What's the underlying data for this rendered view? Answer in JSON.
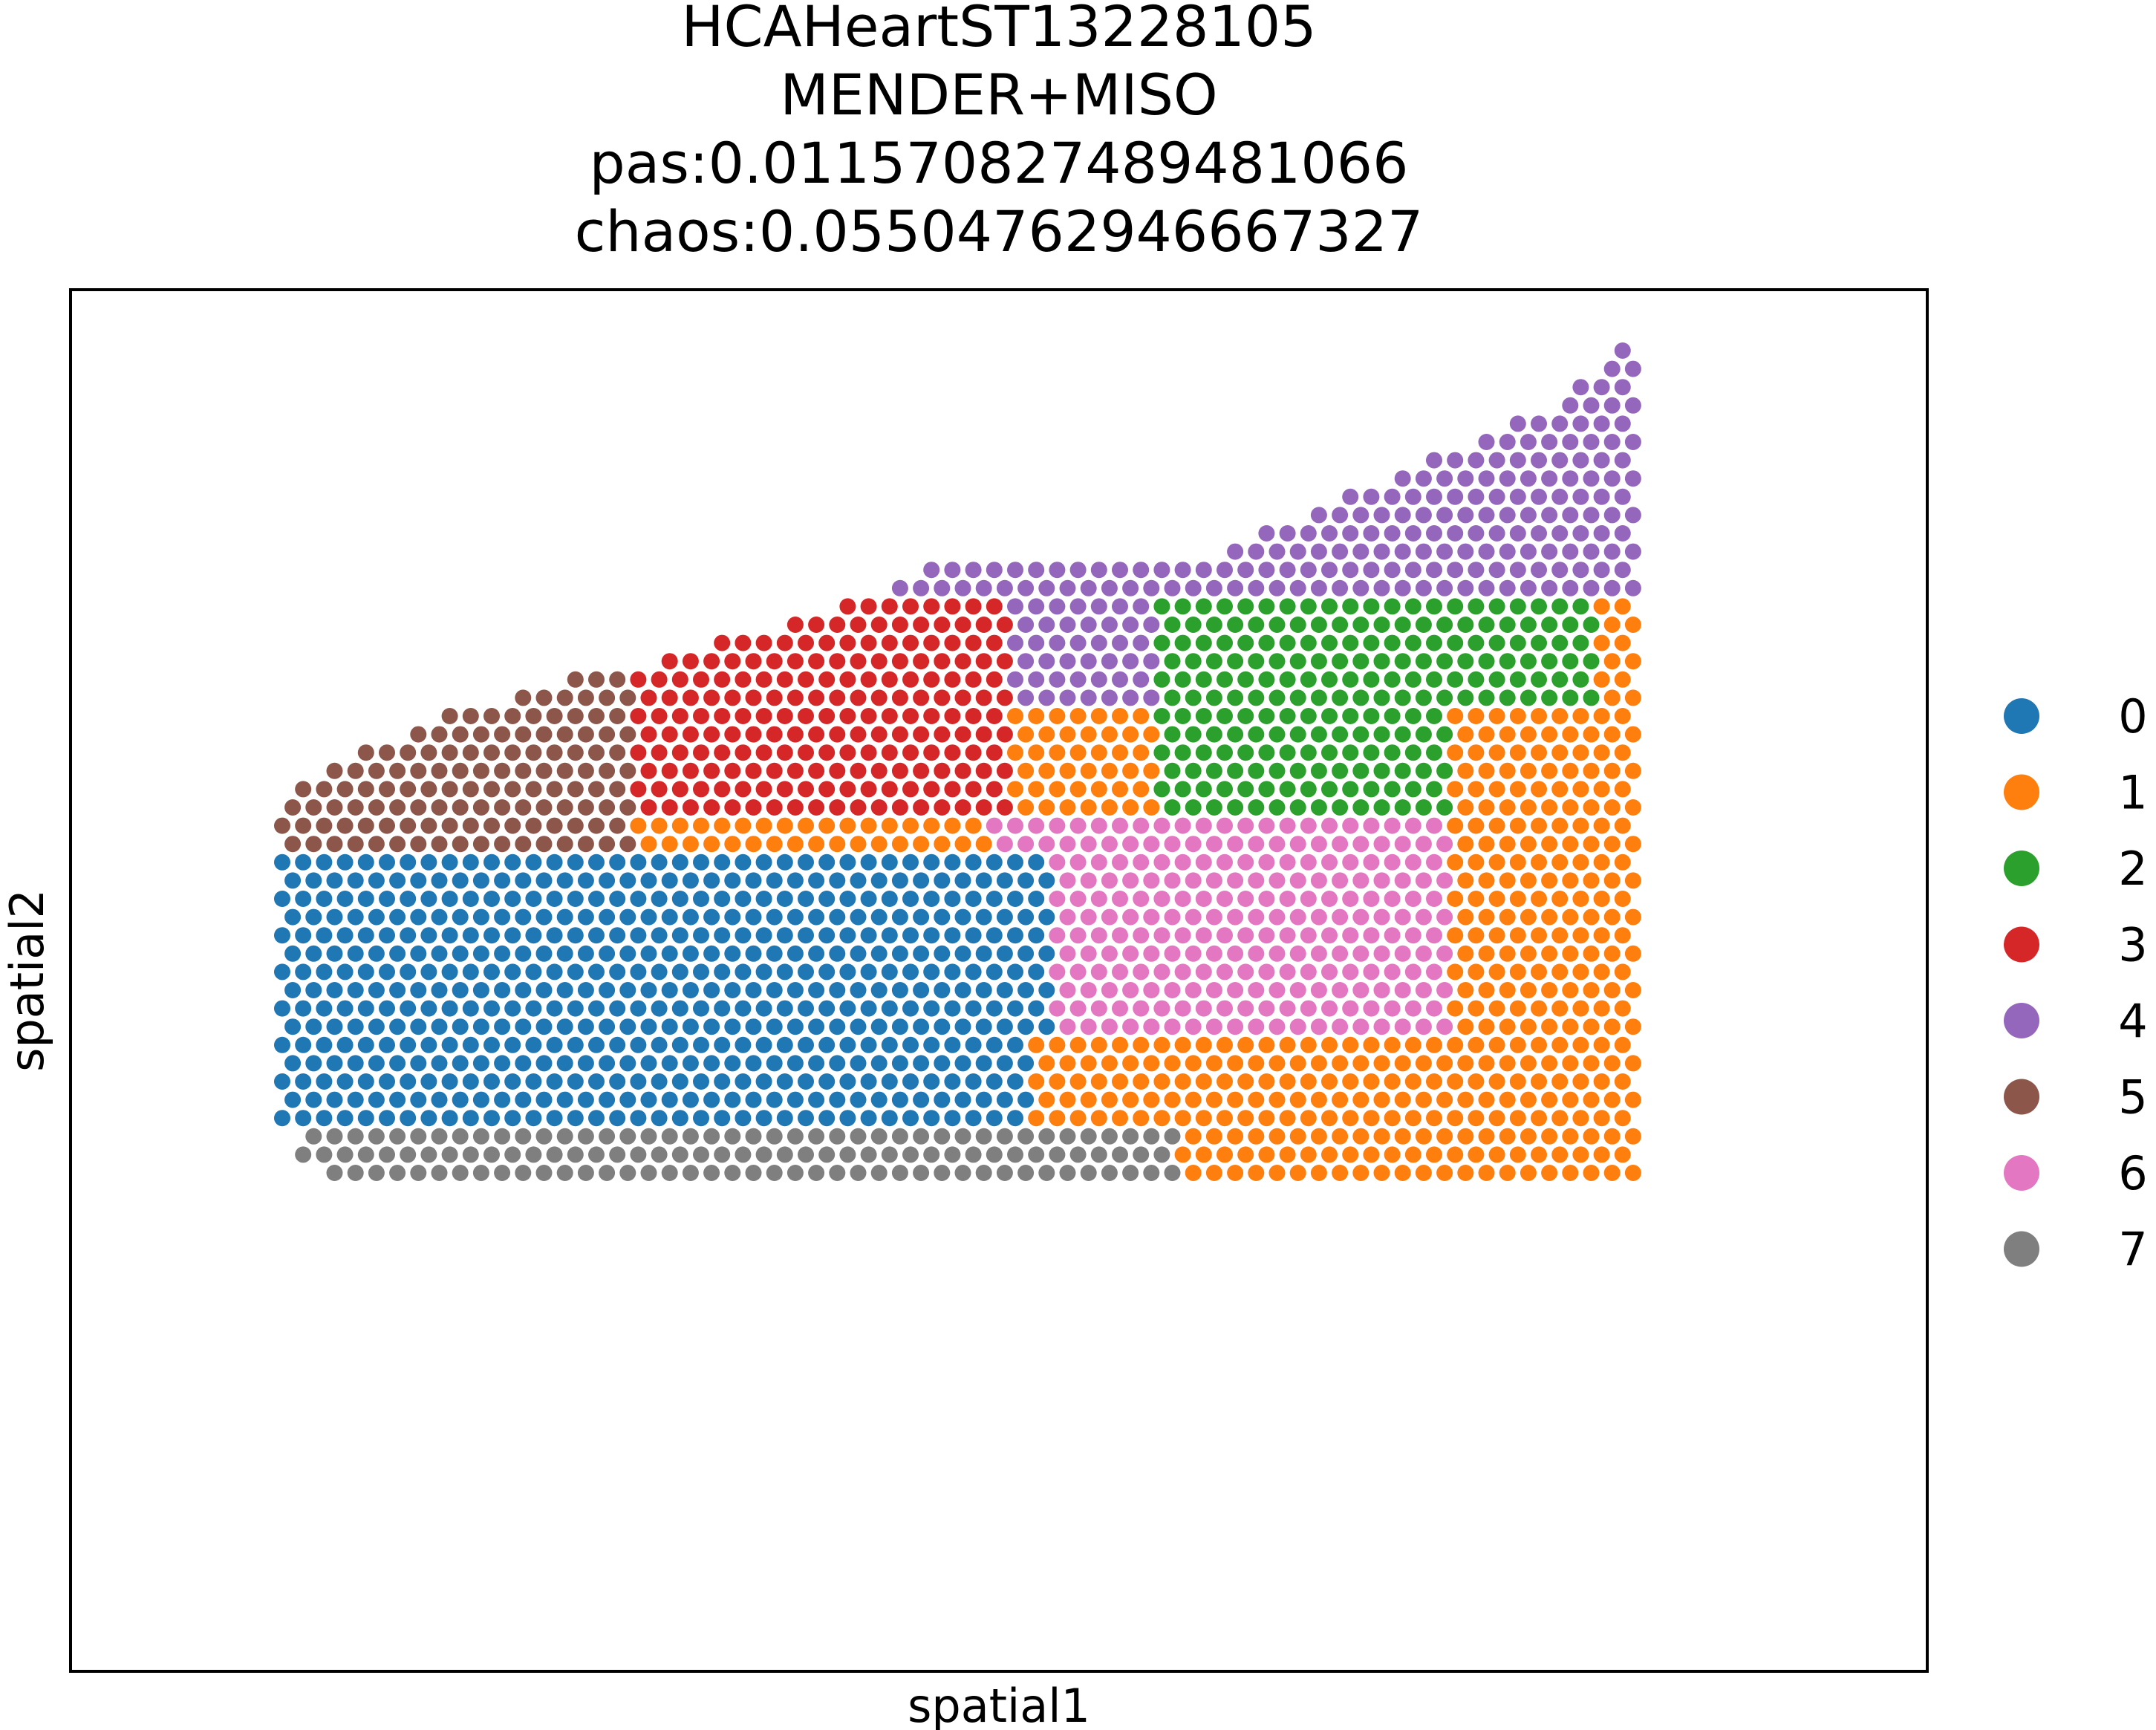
{
  "chart_data": {
    "type": "scatter",
    "title_lines": [
      "HCAHeartST13228105",
      "MENDER+MISO",
      "pas:0.011570827489481066",
      "chaos:0.05504762946667327"
    ],
    "xlabel": "spatial1",
    "ylabel": "spatial2",
    "x_ticks_shown": false,
    "y_ticks_shown": false,
    "grid": false,
    "legend": {
      "placement": "right",
      "title": ""
    },
    "series": [
      {
        "name": "0",
        "color": "#1f77b4"
      },
      {
        "name": "1",
        "color": "#ff7f0e"
      },
      {
        "name": "2",
        "color": "#2ca02c"
      },
      {
        "name": "3",
        "color": "#d62728"
      },
      {
        "name": "4",
        "color": "#9467bd"
      },
      {
        "name": "5",
        "color": "#8c564b"
      },
      {
        "name": "6",
        "color": "#e377c2"
      },
      {
        "name": "7",
        "color": "#7f7f7f"
      }
    ],
    "spot_grid": {
      "lattice": "hexagonal",
      "row_step": 1,
      "col_step": 1,
      "row_ranges": [
        [
          0,
          68,
          68
        ],
        [
          1,
          67,
          68
        ],
        [
          2,
          66,
          68
        ],
        [
          3,
          65,
          68
        ],
        [
          4,
          63,
          68
        ],
        [
          5,
          61,
          68
        ],
        [
          6,
          59,
          68
        ],
        [
          7,
          57,
          68
        ],
        [
          8,
          55,
          68
        ],
        [
          9,
          53,
          68
        ],
        [
          10,
          51,
          68
        ],
        [
          11,
          49,
          68
        ],
        [
          12,
          35,
          68
        ],
        [
          13,
          33,
          68
        ],
        [
          14,
          31,
          68
        ],
        [
          15,
          28,
          68
        ],
        [
          16,
          25,
          68
        ],
        [
          17,
          22,
          68
        ],
        [
          18,
          18,
          68
        ],
        [
          19,
          15,
          68
        ],
        [
          20,
          12,
          68
        ],
        [
          21,
          10,
          68
        ],
        [
          22,
          8,
          68
        ],
        [
          23,
          6,
          68
        ],
        [
          24,
          5,
          68
        ],
        [
          25,
          4,
          68
        ],
        [
          26,
          4,
          68
        ],
        [
          27,
          4,
          68
        ],
        [
          28,
          4,
          68
        ],
        [
          29,
          4,
          68
        ],
        [
          30,
          4,
          68
        ],
        [
          31,
          4,
          68
        ],
        [
          32,
          4,
          68
        ],
        [
          33,
          4,
          68
        ],
        [
          34,
          4,
          68
        ],
        [
          35,
          4,
          68
        ],
        [
          36,
          4,
          68
        ],
        [
          37,
          4,
          68
        ],
        [
          38,
          4,
          68
        ],
        [
          39,
          4,
          68
        ],
        [
          40,
          4,
          68
        ],
        [
          41,
          4,
          68
        ],
        [
          42,
          4,
          68
        ],
        [
          43,
          5,
          68
        ],
        [
          44,
          5,
          68
        ],
        [
          45,
          6,
          68
        ]
      ]
    },
    "regions": [
      {
        "cluster": "4",
        "row_min": 0,
        "row_max": 13,
        "col_min": 0,
        "col_max": 68
      },
      {
        "cluster": "4",
        "row_min": 14,
        "row_max": 19,
        "col_min": 30,
        "col_max": 60
      },
      {
        "cluster": "3",
        "row_min": 14,
        "row_max": 25,
        "col_min": 14,
        "col_max": 38
      },
      {
        "cluster": "5",
        "row_min": 18,
        "row_max": 34,
        "col_min": 4,
        "col_max": 20
      },
      {
        "cluster": "2",
        "row_min": 14,
        "row_max": 38,
        "col_min": 46,
        "col_max": 66
      },
      {
        "cluster": "6",
        "row_min": 26,
        "row_max": 38,
        "col_min": 38,
        "col_max": 60
      },
      {
        "cluster": "0",
        "row_min": 28,
        "row_max": 44,
        "col_min": 4,
        "col_max": 40
      },
      {
        "cluster": "1",
        "row_min": 20,
        "row_max": 52,
        "col_min": 60,
        "col_max": 68
      },
      {
        "cluster": "1",
        "row_min": 38,
        "row_max": 52,
        "col_min": 40,
        "col_max": 68
      },
      {
        "cluster": "7",
        "row_min": 43,
        "row_max": 52,
        "col_min": 4,
        "col_max": 46
      }
    ]
  }
}
